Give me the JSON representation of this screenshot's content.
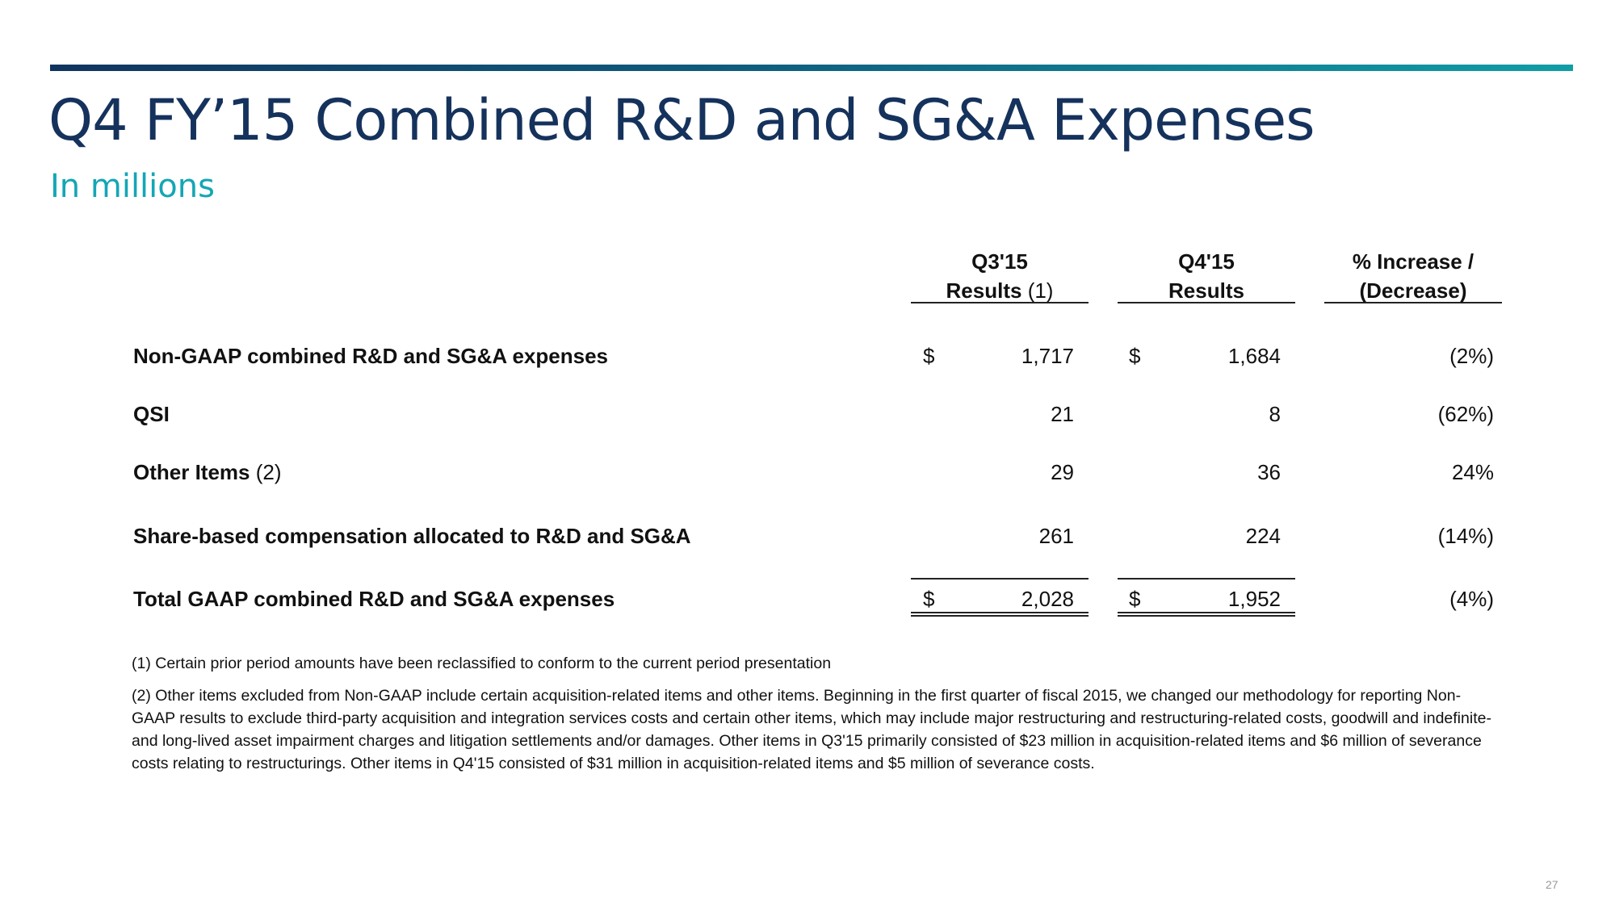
{
  "header": {
    "title": "Q4 FY’15 Combined R&D and SG&A Expenses",
    "subtitle": "In millions"
  },
  "table": {
    "columns": [
      {
        "line1": "Q3'15",
        "line2": "Results",
        "note": "(1)"
      },
      {
        "line1": "Q4'15",
        "line2": "Results",
        "note": ""
      },
      {
        "line1": "% Increase /",
        "line2": "(Decrease)",
        "note": ""
      }
    ],
    "currency_symbol": "$",
    "rows": [
      {
        "label": "Non-GAAP combined R&D and SG&A expenses",
        "note": "",
        "q3": "1,717",
        "q4": "1,684",
        "change": "(2%)"
      },
      {
        "label": "QSI",
        "note": "",
        "q3": "21",
        "q4": "8",
        "change": "(62%)"
      },
      {
        "label": "Other Items",
        "note": "(2)",
        "q3": "29",
        "q4": "36",
        "change": "24%"
      },
      {
        "label": "Share-based compensation allocated to R&D and SG&A",
        "note": "",
        "q3": "261",
        "q4": "224",
        "change": "(14%)"
      },
      {
        "label": "Total GAAP combined R&D and SG&A expenses",
        "note": "",
        "q3": "2,028",
        "q4": "1,952",
        "change": "(4%)"
      }
    ]
  },
  "footnotes": [
    "(1) Certain prior period amounts have been reclassified to conform to the current period presentation",
    "(2) Other items excluded from Non-GAAP include certain acquisition-related items and other items. Beginning in the first quarter of fiscal 2015, we changed our methodology for reporting Non-GAAP results to exclude third-party acquisition and integration services costs and certain other items, which may include major restructuring and restructuring-related costs, goodwill and indefinite- and long-lived asset impairment charges and litigation settlements and/or damages. Other items in Q3'15 primarily consisted of $23 million in acquisition-related items and $6 million of severance costs relating to restructurings. Other items in Q4'15 consisted of $31 million in acquisition-related items and $5 million of severance costs."
  ],
  "page_number": "27",
  "colors": {
    "title": "#15325c",
    "subtitle": "#14a6b5",
    "bar_start": "#10345f",
    "bar_end": "#109da6"
  }
}
